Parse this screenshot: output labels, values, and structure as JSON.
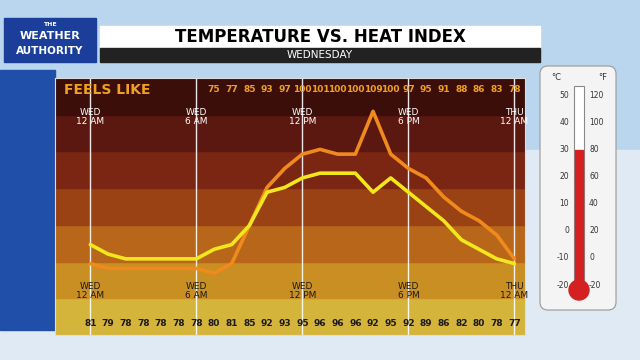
{
  "header": {
    "logo": [
      "THE",
      "WEATHER",
      "AUTHORITY"
    ],
    "title": "TEMPERATURE VS. HEAT INDEX",
    "subtitle": "WEDNESDAY"
  },
  "chart_data": {
    "type": "line",
    "x": [
      0,
      1,
      2,
      3,
      4,
      5,
      6,
      7,
      8,
      9,
      10,
      11,
      12,
      13,
      14,
      15,
      16,
      17,
      18,
      19,
      20,
      21,
      22,
      23,
      24
    ],
    "series": [
      {
        "name": "FEELS LIKE",
        "color": "#f08a1c",
        "values": [
          77,
          76,
          76,
          76,
          76,
          76,
          76,
          75,
          77,
          85,
          93,
          97,
          100,
          101,
          100,
          100,
          109,
          100,
          97,
          95,
          91,
          88,
          86,
          83,
          78
        ],
        "value_labels": [
          null,
          null,
          null,
          null,
          null,
          null,
          null,
          "75",
          "77",
          "85",
          "93",
          "97",
          "100",
          "101",
          "100",
          "100",
          "109",
          "100",
          "97",
          "95",
          "91",
          "88",
          "86",
          "83",
          "78"
        ]
      },
      {
        "color": "#f2e61c",
        "values": [
          81,
          79,
          78,
          78,
          78,
          78,
          78,
          80,
          81,
          85,
          92,
          93,
          95,
          96,
          96,
          96,
          92,
          95,
          92,
          89,
          86,
          82,
          80,
          78,
          77
        ]
      }
    ],
    "xlim": [
      -2,
      24.6
    ],
    "xticks": [
      {
        "value": 0,
        "label": "WED\n12 AM"
      },
      {
        "value": 6,
        "label": "WED\n6 AM"
      },
      {
        "value": 12,
        "label": "WED\n12 PM"
      },
      {
        "value": 18,
        "label": "WED\n6 PM"
      },
      {
        "value": 24,
        "label": "THU\n12 AM"
      }
    ],
    "ylim": [
      62,
      116
    ],
    "yticks": [],
    "grid": true,
    "data_labels": true,
    "tick_labels": false
  },
  "thermometer": {
    "units": [
      "°C",
      "°F"
    ],
    "celsius": [
      50,
      40,
      30,
      20,
      10,
      0,
      -10,
      -20
    ],
    "fahrenheit": [
      120,
      100,
      80,
      60,
      40,
      20,
      0,
      -20
    ]
  }
}
